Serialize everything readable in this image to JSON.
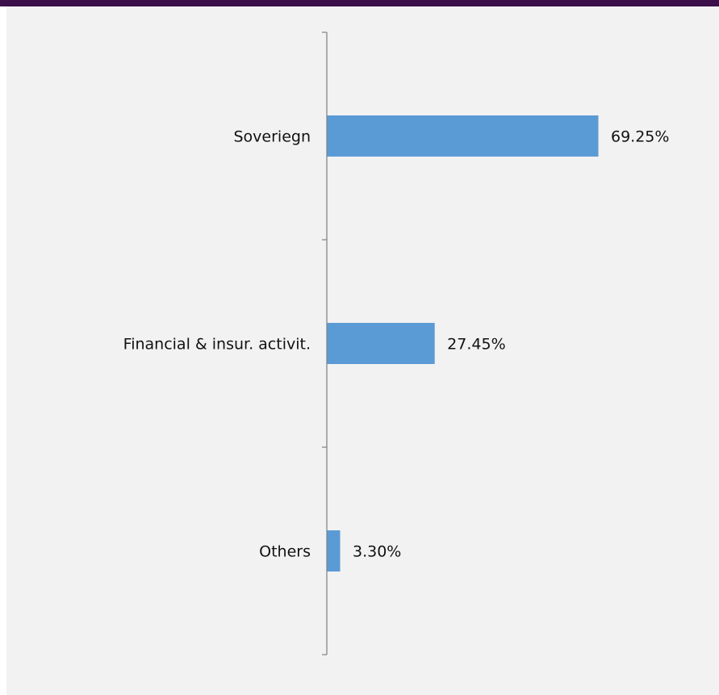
{
  "chart_data": {
    "type": "bar",
    "orientation": "horizontal",
    "categories": [
      "Soveriegn",
      "Financial & insur. activit.",
      "Others"
    ],
    "values": [
      69.25,
      27.45,
      3.3
    ],
    "value_labels": [
      "69.25%",
      "27.45%",
      "3.30%"
    ],
    "unit": "%",
    "title": "",
    "xlabel": "",
    "ylabel": "",
    "xlim": [
      0,
      100
    ],
    "grid": false,
    "legend": "none",
    "bar_color": "#5b9bd5"
  },
  "colors": {
    "header_band": "#3d0f4a",
    "background": "#f2f2f2",
    "axis": "#7f7f7f",
    "text": "#111111"
  }
}
